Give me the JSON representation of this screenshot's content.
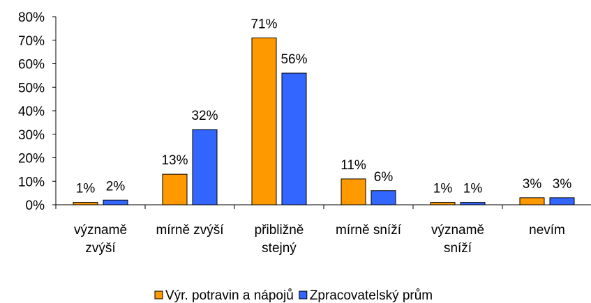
{
  "chart_data": {
    "type": "bar",
    "categories": [
      "významě\nzvýší",
      "mírně zvýší",
      "přibližně\nstejný",
      "mírně sníží",
      "významě\nsníží",
      "nevím"
    ],
    "series": [
      {
        "name": "Výr. potravin a nápojů",
        "color": "#ff9900",
        "values": [
          1,
          13,
          71,
          11,
          1,
          3
        ],
        "value_labels": [
          "1%",
          "13%",
          "71%",
          "11%",
          "1%",
          "3%"
        ]
      },
      {
        "name": "Zpracovatelský prům",
        "color": "#3366ff",
        "values": [
          2,
          32,
          56,
          6,
          1,
          3
        ],
        "value_labels": [
          "2%",
          "32%",
          "56%",
          "6%",
          "1%",
          "3%"
        ]
      }
    ],
    "ylim": [
      0,
      80
    ],
    "yticks": [
      {
        "value": 0,
        "label": "0%"
      },
      {
        "value": 10,
        "label": "10%"
      },
      {
        "value": 20,
        "label": "20%"
      },
      {
        "value": 30,
        "label": "30%"
      },
      {
        "value": 40,
        "label": "40%"
      },
      {
        "value": 50,
        "label": "50%"
      },
      {
        "value": 60,
        "label": "60%"
      },
      {
        "value": 70,
        "label": "70%"
      },
      {
        "value": 80,
        "label": "80%"
      }
    ],
    "grid": false
  }
}
